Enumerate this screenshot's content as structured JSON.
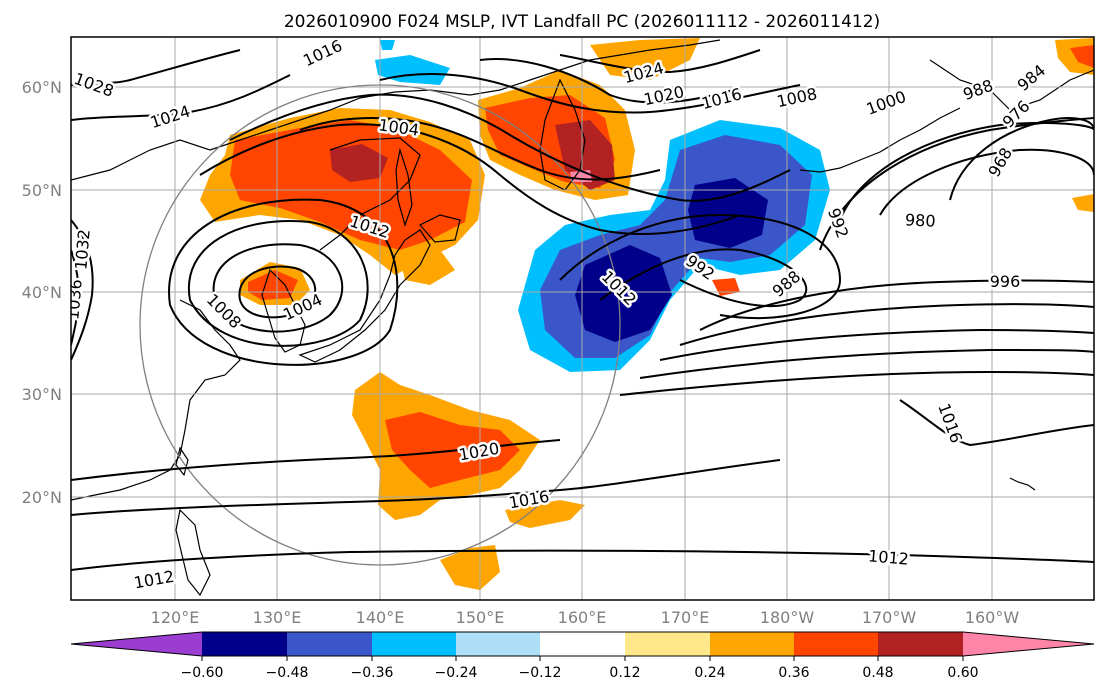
{
  "chart_data": {
    "type": "map",
    "title": "2026010900 F024 MSLP, IVT Landfall PC (2026011112 - 2026011412)",
    "lon_ticks": [
      "120°E",
      "130°E",
      "140°E",
      "150°E",
      "160°E",
      "170°E",
      "180°W",
      "170°W",
      "160°W"
    ],
    "lat_ticks": [
      "20°N",
      "30°N",
      "40°N",
      "50°N",
      "60°N"
    ],
    "grid": true,
    "colorbar": {
      "orientation": "horizontal",
      "extend": "both",
      "ticks": [
        "−0.60",
        "−0.48",
        "−0.36",
        "−0.24",
        "−0.12",
        "0.12",
        "0.24",
        "0.36",
        "0.48",
        "0.60"
      ],
      "colors": [
        "#9a3dd0",
        "#00008b",
        "#3a56c8",
        "#00bfff",
        "#aedff7",
        "#ffffff",
        "#ffe88a",
        "#ffa500",
        "#ff4500",
        "#b22222",
        "#ff85a8"
      ]
    },
    "isobar_labels": [
      "1016",
      "1028",
      "1024",
      "1004",
      "1020",
      "1024",
      "1016",
      "1008",
      "1000",
      "988",
      "984",
      "976",
      "968",
      "1012",
      "1036",
      "1032",
      "1008",
      "1004",
      "1012",
      "992",
      "992",
      "988",
      "980",
      "996",
      "1020",
      "1016",
      "1016",
      "1012",
      "1012"
    ]
  },
  "colors": {
    "isobar": "#000000",
    "coast": "#000000",
    "grid": "#a9a9a9",
    "ring": "#808080"
  }
}
